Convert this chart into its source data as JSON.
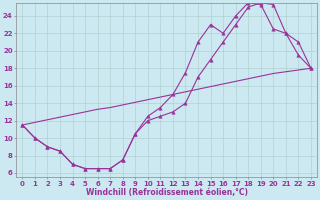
{
  "xlabel": "Windchill (Refroidissement éolien,°C)",
  "bg_color": "#cce8f0",
  "line_color": "#993399",
  "grid_color": "#aacccc",
  "spine_color": "#888888",
  "xlim": [
    -0.5,
    23.5
  ],
  "ylim": [
    5.5,
    25.5
  ],
  "yticks": [
    6,
    8,
    10,
    12,
    14,
    16,
    18,
    20,
    22,
    24
  ],
  "xticks": [
    0,
    1,
    2,
    3,
    4,
    5,
    6,
    7,
    8,
    9,
    10,
    11,
    12,
    13,
    14,
    15,
    16,
    17,
    18,
    19,
    20,
    21,
    22,
    23
  ],
  "series1_x": [
    0,
    1,
    2,
    3,
    4,
    5,
    6,
    7,
    8,
    9,
    10,
    11,
    12,
    13,
    14,
    15,
    16,
    17,
    18,
    19,
    20,
    21,
    22,
    23
  ],
  "series1_y": [
    11.5,
    10.0,
    9.0,
    8.5,
    7.0,
    6.5,
    6.5,
    6.5,
    7.5,
    10.5,
    12.0,
    12.5,
    13.0,
    14.0,
    17.0,
    19.0,
    21.0,
    23.0,
    25.0,
    25.5,
    25.3,
    22.0,
    21.0,
    18.0
  ],
  "series2_x": [
    0,
    1,
    2,
    3,
    4,
    5,
    6,
    7,
    8,
    9,
    10,
    11,
    12,
    13,
    14,
    15,
    16,
    17,
    18,
    19,
    20,
    21,
    22,
    23
  ],
  "series2_y": [
    11.5,
    10.0,
    9.0,
    8.5,
    7.0,
    6.5,
    6.5,
    6.5,
    7.5,
    10.5,
    12.5,
    13.5,
    15.0,
    17.5,
    21.0,
    23.0,
    22.0,
    24.0,
    25.5,
    25.3,
    22.5,
    22.0,
    19.5,
    18.0
  ],
  "series3_x": [
    0,
    1,
    2,
    3,
    4,
    5,
    6,
    7,
    8,
    9,
    10,
    11,
    12,
    13,
    14,
    15,
    16,
    17,
    18,
    19,
    20,
    21,
    22,
    23
  ],
  "series3_y": [
    11.5,
    11.8,
    12.1,
    12.4,
    12.7,
    13.0,
    13.3,
    13.5,
    13.8,
    14.1,
    14.4,
    14.7,
    15.0,
    15.3,
    15.6,
    15.9,
    16.2,
    16.5,
    16.8,
    17.1,
    17.4,
    17.6,
    17.8,
    18.0
  ],
  "tick_fontsize": 5,
  "xlabel_fontsize": 5.5,
  "linewidth": 0.8,
  "markersize": 2.5
}
